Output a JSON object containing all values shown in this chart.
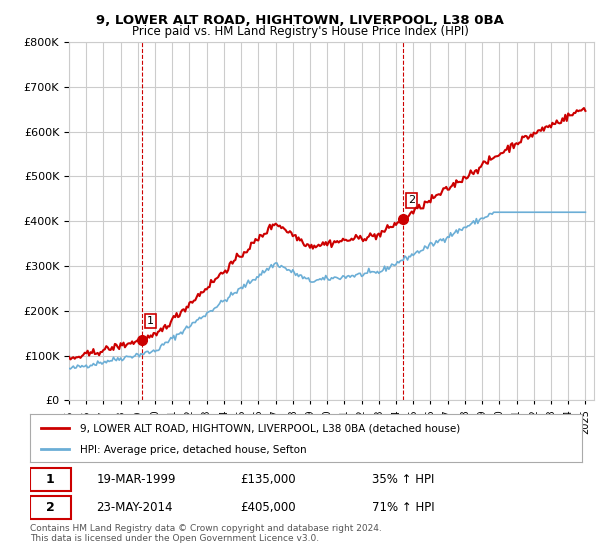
{
  "title1": "9, LOWER ALT ROAD, HIGHTOWN, LIVERPOOL, L38 0BA",
  "title2": "Price paid vs. HM Land Registry's House Price Index (HPI)",
  "ylabel_ticks": [
    "£0",
    "£100K",
    "£200K",
    "£300K",
    "£400K",
    "£500K",
    "£600K",
    "£700K",
    "£800K"
  ],
  "ylim": [
    0,
    800000
  ],
  "xlim_start": 1995.0,
  "xlim_end": 2025.5,
  "sale1_date": 1999.22,
  "sale1_price": 135000,
  "sale2_date": 2014.39,
  "sale2_price": 405000,
  "legend1": "9, LOWER ALT ROAD, HIGHTOWN, LIVERPOOL, L38 0BA (detached house)",
  "legend2": "HPI: Average price, detached house, Sefton",
  "annotation1_label": "1",
  "annotation1_date": "19-MAR-1999",
  "annotation1_price": "£135,000",
  "annotation1_hpi": "35% ↑ HPI",
  "annotation2_label": "2",
  "annotation2_date": "23-MAY-2014",
  "annotation2_price": "£405,000",
  "annotation2_hpi": "71% ↑ HPI",
  "footer": "Contains HM Land Registry data © Crown copyright and database right 2024.\nThis data is licensed under the Open Government Licence v3.0.",
  "hpi_color": "#6baed6",
  "price_color": "#cc0000",
  "sale_dot_color": "#cc0000",
  "vline_color": "#cc0000",
  "grid_color": "#cccccc",
  "bg_color": "#ffffff"
}
